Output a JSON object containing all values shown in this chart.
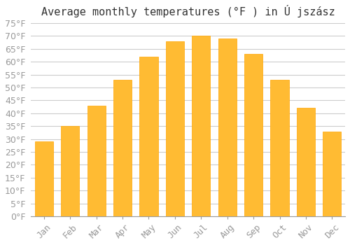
{
  "title": "Average monthly temperatures (°F ) in Ú jszász",
  "months": [
    "Jan",
    "Feb",
    "Mar",
    "Apr",
    "May",
    "Jun",
    "Jul",
    "Aug",
    "Sep",
    "Oct",
    "Nov",
    "Dec"
  ],
  "values": [
    29,
    35,
    43,
    53,
    62,
    68,
    70,
    69,
    63,
    53,
    42,
    33
  ],
  "bar_color": "#FFBB33",
  "bar_edge_color": "#FFA500",
  "background_color": "#FFFFFF",
  "grid_color": "#CCCCCC",
  "ylim": [
    0,
    75
  ],
  "yticks": [
    0,
    5,
    10,
    15,
    20,
    25,
    30,
    35,
    40,
    45,
    50,
    55,
    60,
    65,
    70,
    75
  ],
  "title_fontsize": 11,
  "tick_fontsize": 9,
  "tick_font_color": "#999999"
}
